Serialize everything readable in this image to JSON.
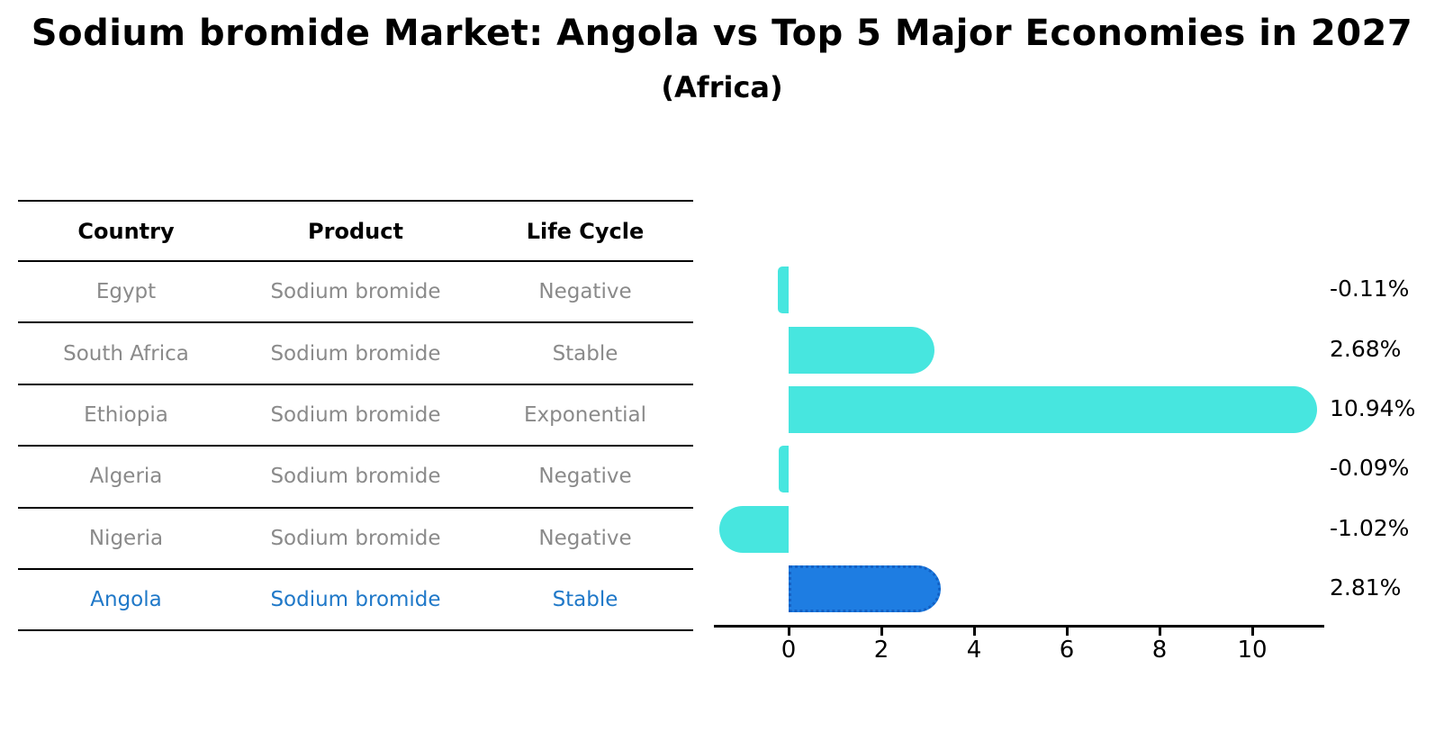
{
  "header": {
    "title": "Sodium bromide Market: Angola vs Top 5 Major Economies in 2027",
    "subtitle": "(Africa)"
  },
  "table": {
    "columns": [
      "Country",
      "Product",
      "Life Cycle"
    ],
    "rows": [
      {
        "country": "Egypt",
        "product": "Sodium bromide",
        "life_cycle": "Negative",
        "highlight": false
      },
      {
        "country": "South Africa",
        "product": "Sodium bromide",
        "life_cycle": "Stable",
        "highlight": false
      },
      {
        "country": "Ethiopia",
        "product": "Sodium bromide",
        "life_cycle": "Exponential",
        "highlight": false
      },
      {
        "country": "Algeria",
        "product": "Sodium bromide",
        "life_cycle": "Negative",
        "highlight": false
      },
      {
        "country": "Nigeria",
        "product": "Sodium bromide",
        "life_cycle": "Negative",
        "highlight": false
      },
      {
        "country": "Angola",
        "product": "Sodium bromide",
        "life_cycle": "Stable",
        "highlight": true
      }
    ]
  },
  "chart_data": {
    "type": "bar",
    "orientation": "horizontal",
    "title": "Sodium bromide Market: Angola vs Top 5 Major Economies in 2027",
    "subtitle": "(Africa)",
    "categories": [
      "Egypt",
      "South Africa",
      "Ethiopia",
      "Algeria",
      "Nigeria",
      "Angola"
    ],
    "values": [
      -0.11,
      2.68,
      10.94,
      -0.09,
      -1.02,
      2.81
    ],
    "labels": [
      "-0.11%",
      "2.68%",
      "10.94%",
      "-0.09%",
      "-1.02%",
      "2.81%"
    ],
    "value_unit": "percent",
    "x_ticks": [
      0,
      2,
      4,
      6,
      8,
      10
    ],
    "xlim": [
      -1.6,
      11.55
    ],
    "grid": false,
    "legend": false,
    "highlight_index": 5
  },
  "colors": {
    "bar": "#47e6df",
    "highlight_bar": "#1e7de2",
    "highlight_edge": "#1260c4",
    "highlight_text": "#1f78c8",
    "muted_text": "#8a8a8a"
  }
}
